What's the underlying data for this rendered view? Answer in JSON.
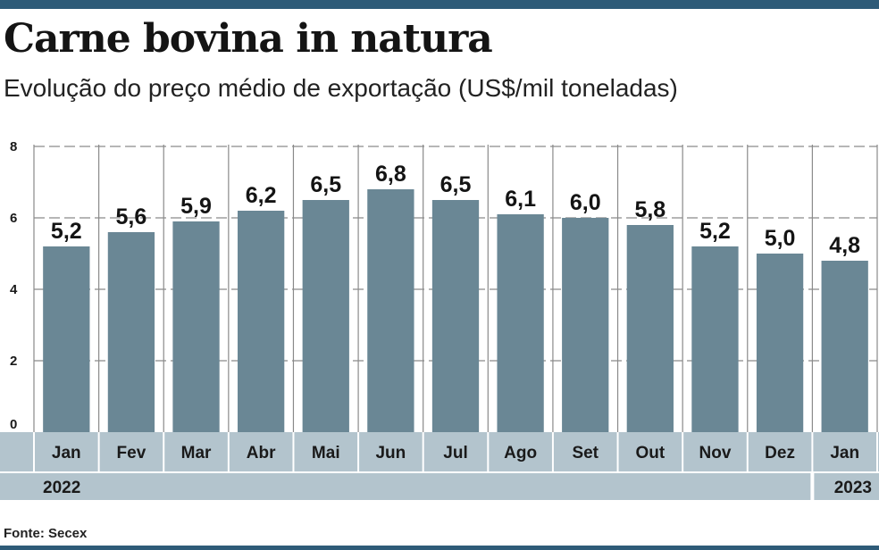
{
  "header": {
    "title": "Carne bovina in natura",
    "subtitle": "Evolução do preço médio de exportação (US$/mil toneladas)"
  },
  "chart_data": {
    "type": "bar",
    "title": "Carne bovina in natura",
    "subtitle": "Evolução do preço médio de exportação (US$/mil toneladas)",
    "categories": [
      "Jan",
      "Fev",
      "Mar",
      "Abr",
      "Mai",
      "Jun",
      "Jul",
      "Ago",
      "Set",
      "Out",
      "Nov",
      "Dez",
      "Jan"
    ],
    "values": [
      5.2,
      5.6,
      5.9,
      6.2,
      6.5,
      6.8,
      6.5,
      6.1,
      6.0,
      5.8,
      5.2,
      5.0,
      4.8
    ],
    "value_labels": [
      "5,2",
      "5,6",
      "5,9",
      "6,2",
      "6,5",
      "6,8",
      "6,5",
      "6,1",
      "6,0",
      "5,8",
      "5,2",
      "5,0",
      "4,8"
    ],
    "year_groups": [
      {
        "label": "2022",
        "count": 12
      },
      {
        "label": "2023",
        "count": 1
      }
    ],
    "y_ticks": [
      0,
      2,
      4,
      6,
      8
    ],
    "ylim": [
      0,
      8
    ],
    "xlabel": "",
    "ylabel": "US$/mil toneladas",
    "grid": true,
    "bar_color": "#6a8795",
    "band_color": "#b3c4cd",
    "grid_color": "#8a8a8a"
  },
  "footer": {
    "source": "Fonte: Secex"
  }
}
